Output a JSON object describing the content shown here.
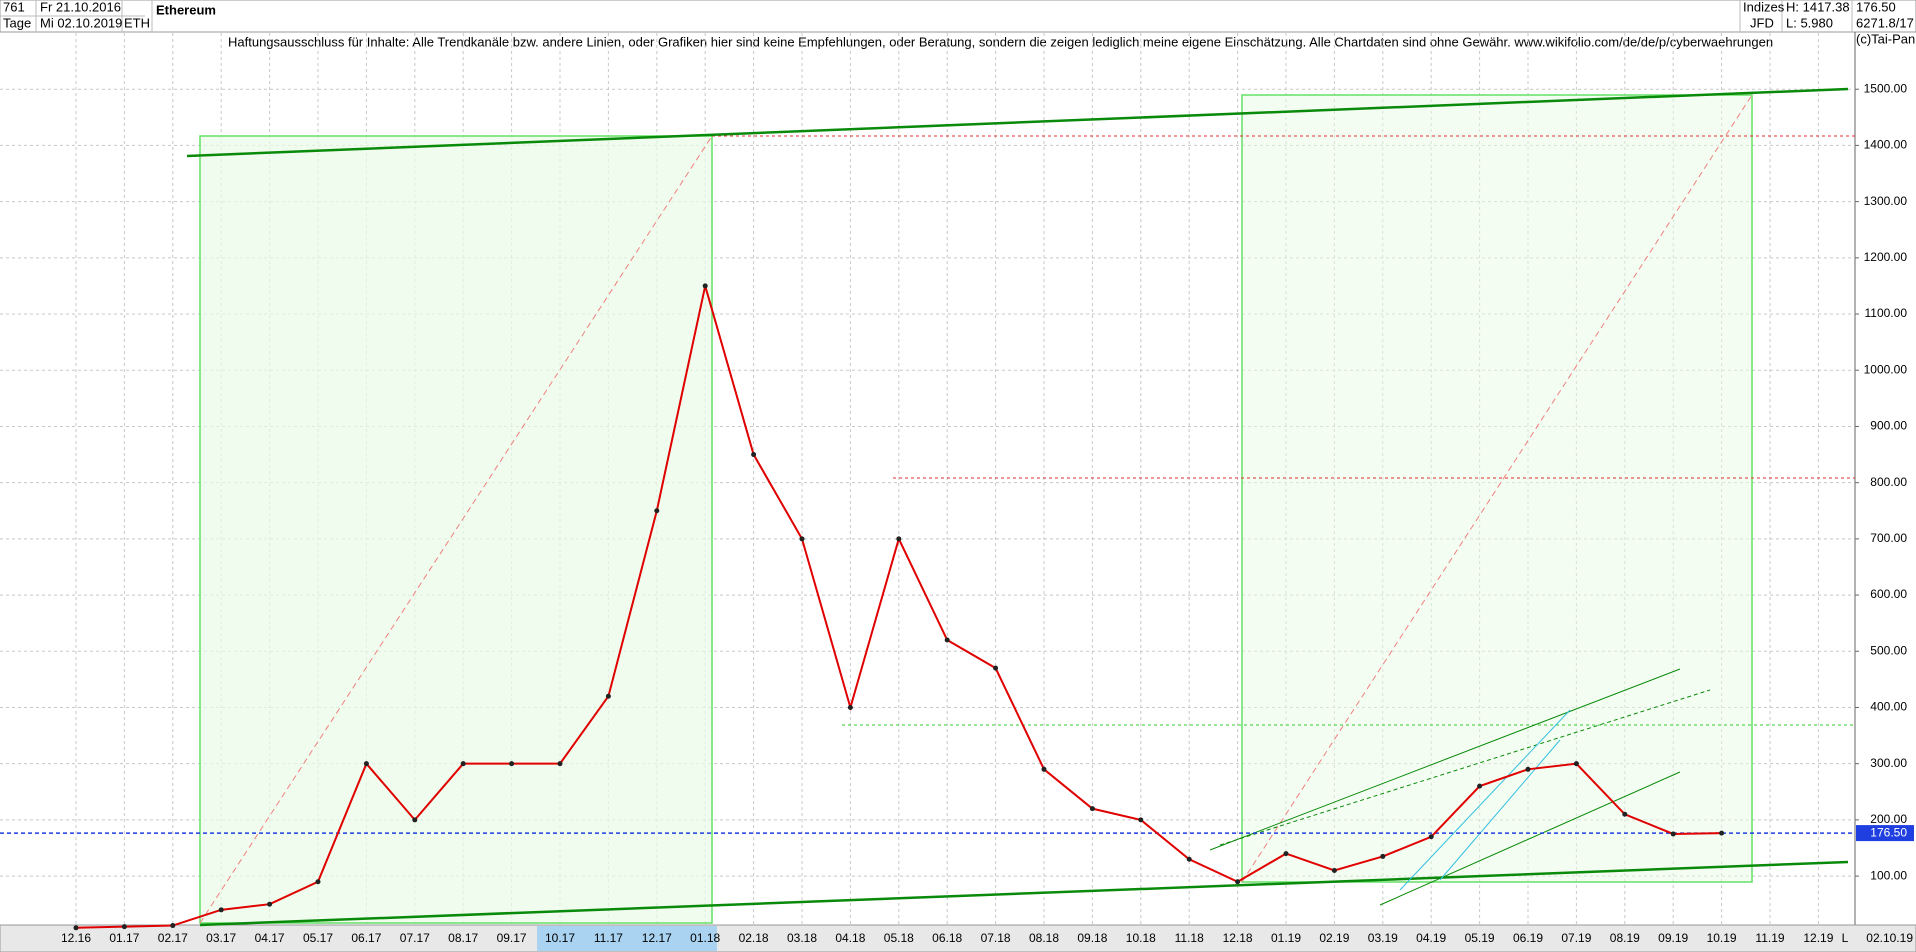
{
  "header": {
    "count": "761",
    "date_from": "Fr 21.10.2016",
    "period": "Tage",
    "date_to": "Mi 02.10.2019",
    "title": "Ethereum",
    "symbol": "ETH",
    "market": "Indizes",
    "source": "JFD",
    "high": "H: 1417.38",
    "low": "L: 5.980",
    "last": "176.50",
    "code": "6271.8/17",
    "copyright": "(c)Tai-Pan",
    "disclaimer": "Haftungsausschluss für Inhalte: Alle Trendkanäle bzw. andere Linien, oder Grafiken hier sind keine Empfehlungen, oder Beratung, sondern die zeigen lediglich meine eigene Einschätzung. Alle Chartdaten sind ohne Gewähr.  www.wikifolio.com/de/de/p/cyberwaehrungen"
  },
  "chart_data": {
    "type": "line",
    "categories": [
      "12.16",
      "01.17",
      "02.17",
      "03.17",
      "04.17",
      "05.17",
      "06.17",
      "07.17",
      "08.17",
      "09.17",
      "10.17",
      "11.17",
      "12.17",
      "01.18",
      "02.18",
      "03.18",
      "04.18",
      "05.18",
      "06.18",
      "07.18",
      "08.18",
      "09.18",
      "10.18",
      "11.18",
      "12.18",
      "01.19",
      "02.19",
      "03.19",
      "04.19",
      "05.19",
      "06.19",
      "07.19",
      "08.19",
      "09.19",
      "10.19",
      "11.19",
      "12.19"
    ],
    "series": [
      {
        "name": "ETH",
        "color": "#e00000",
        "values": [
          8,
          10,
          12,
          40,
          50,
          90,
          300,
          200,
          300,
          300,
          300,
          420,
          750,
          1150,
          850,
          700,
          400,
          700,
          520,
          470,
          290,
          220,
          200,
          130,
          90,
          140,
          110,
          135,
          170,
          260,
          290,
          300,
          210,
          175,
          176.5,
          null,
          null
        ]
      }
    ],
    "cursor_date": "02.10.19",
    "axis_end": "L",
    "current_line": {
      "value": 176.5,
      "label": "176.50",
      "color": "#1f3fe0"
    },
    "ylim": [
      13,
      1600
    ],
    "yticks": [
      {
        "value": 100,
        "label": "100.00"
      },
      {
        "value": 200,
        "label": "200.00"
      },
      {
        "value": 300,
        "label": "300.00"
      },
      {
        "value": 400,
        "label": "400.00"
      },
      {
        "value": 500,
        "label": "500.00"
      },
      {
        "value": 600,
        "label": "600.00"
      },
      {
        "value": 700,
        "label": "700.00"
      },
      {
        "value": 800,
        "label": "800.00"
      },
      {
        "value": 900,
        "label": "900.00"
      },
      {
        "value": 1000,
        "label": "1000.00"
      },
      {
        "value": 1100,
        "label": "1100.00"
      },
      {
        "value": 1200,
        "label": "1200.00"
      },
      {
        "value": 1300,
        "label": "1300.00"
      },
      {
        "value": 1400,
        "label": "1400.00"
      },
      {
        "value": 1500,
        "label": "1500.00"
      }
    ],
    "grid": true
  }
}
